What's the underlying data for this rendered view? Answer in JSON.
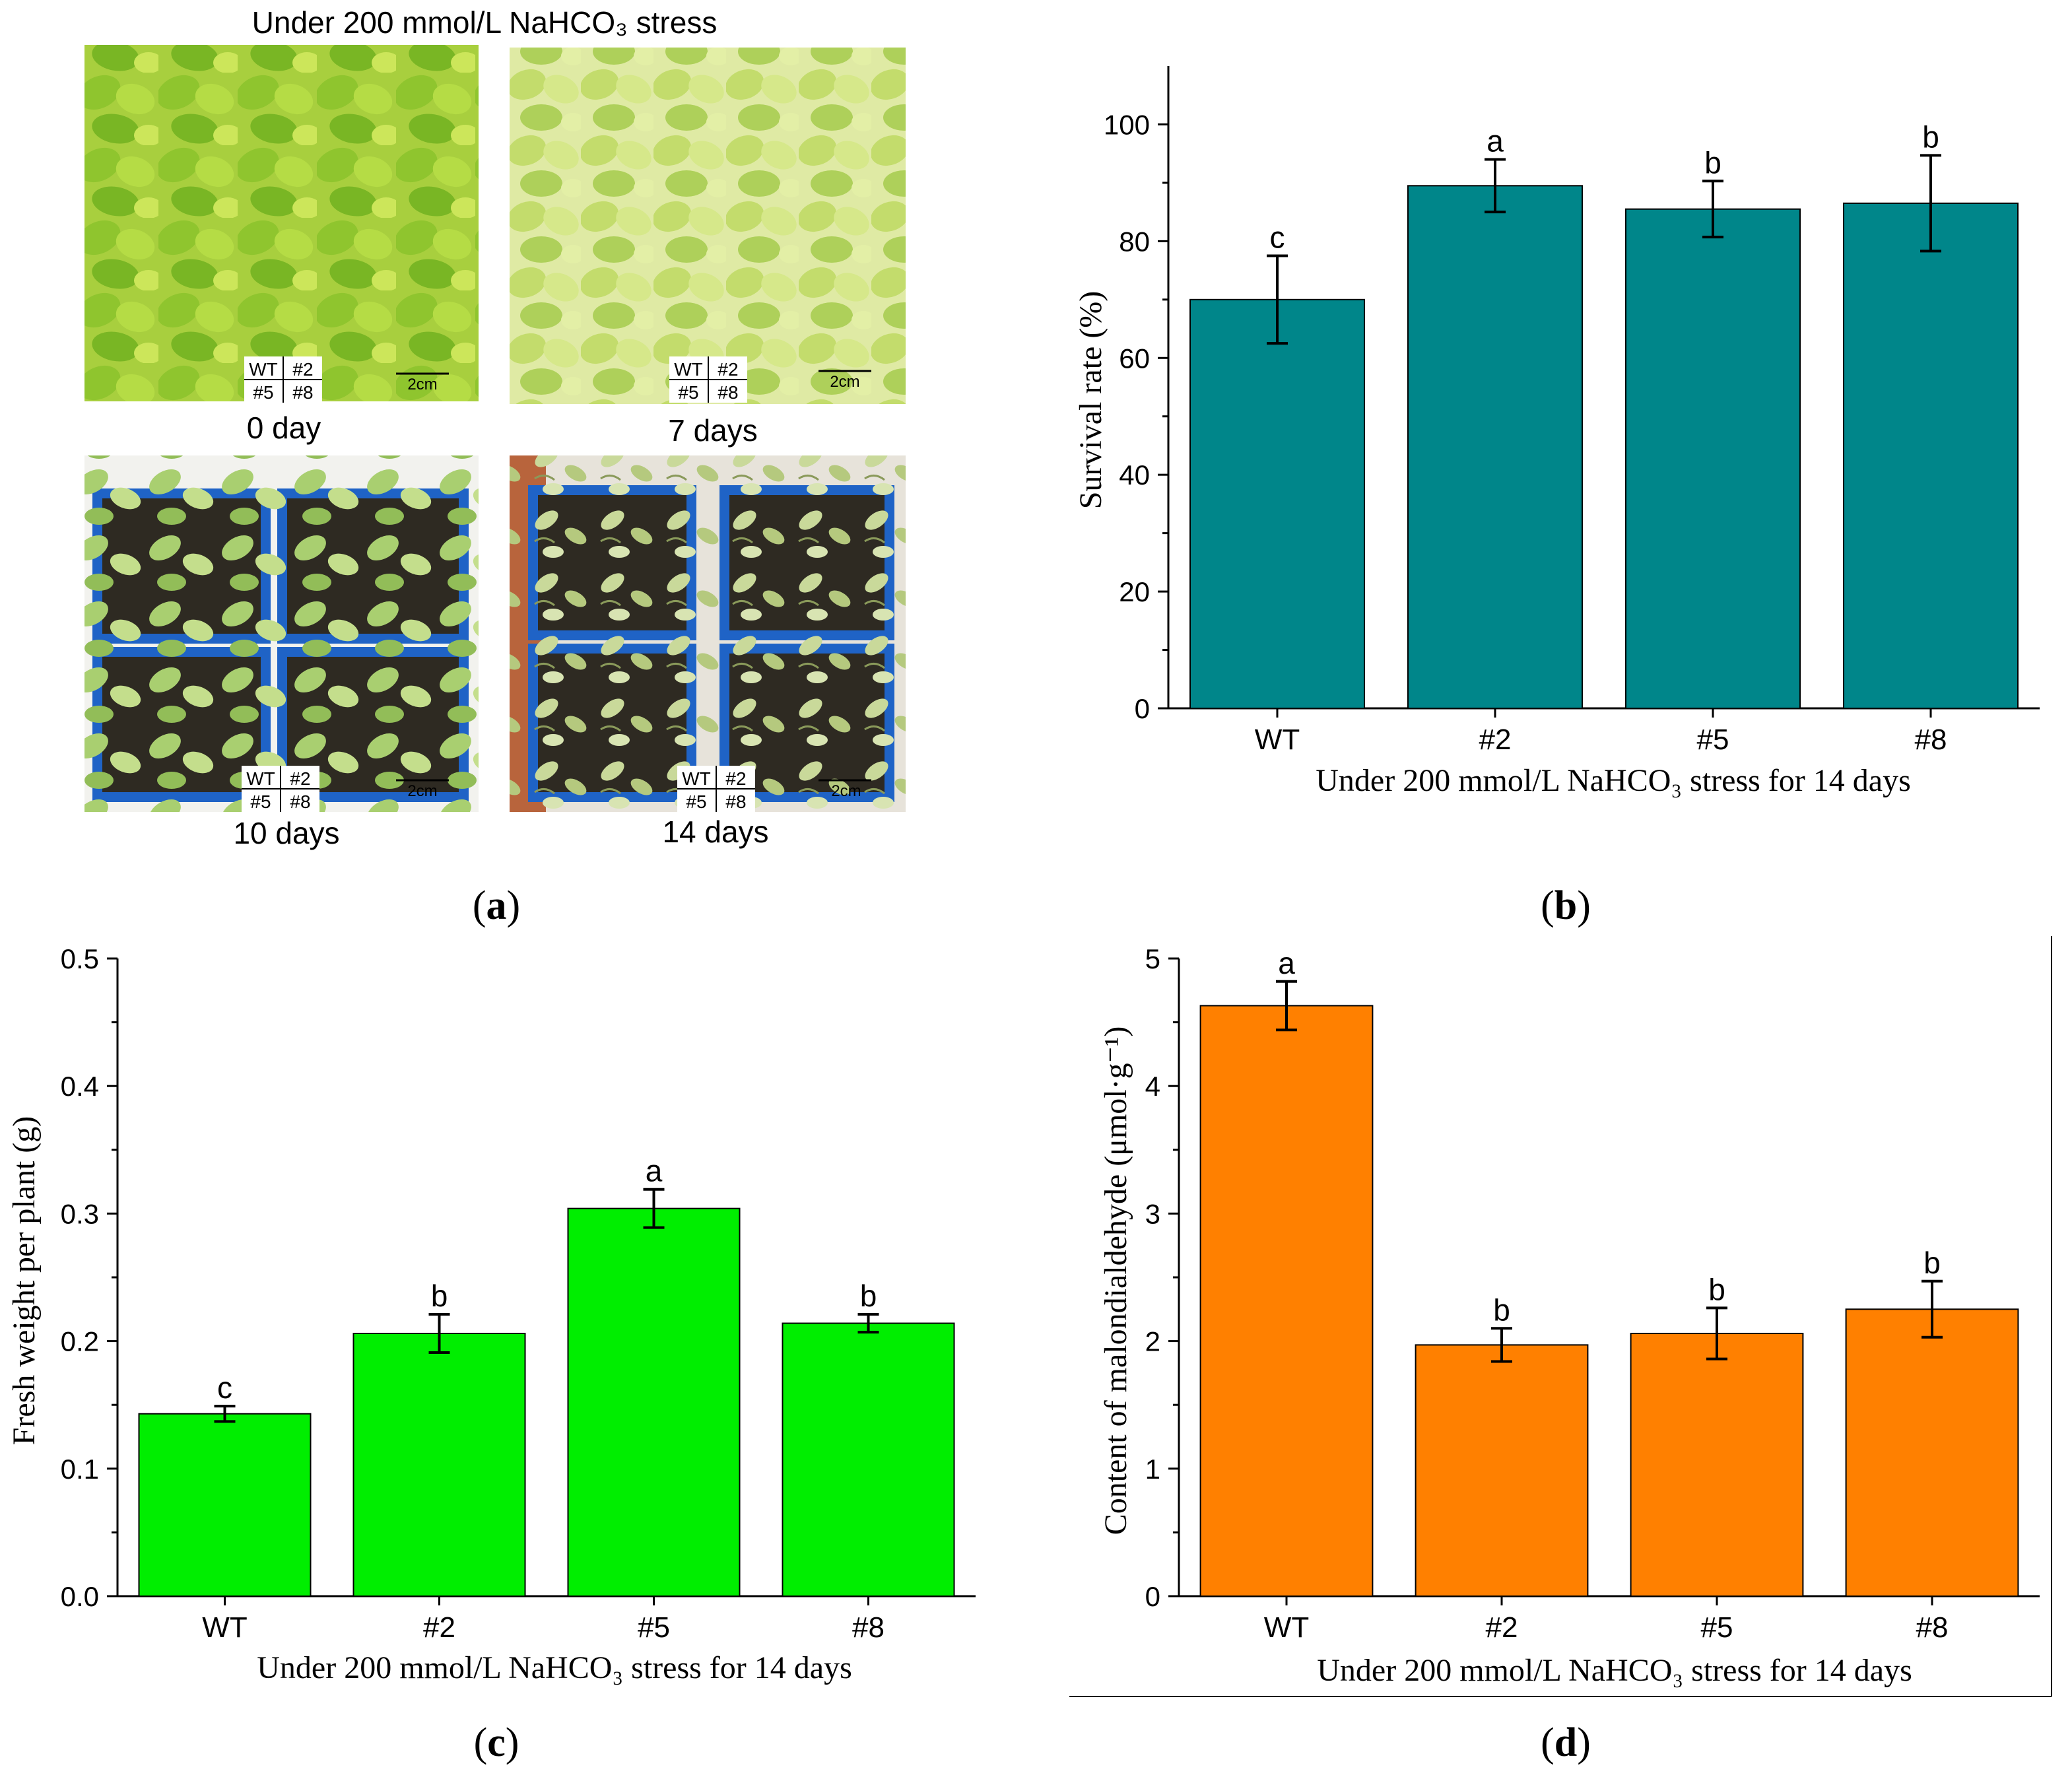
{
  "panel_a": {
    "title": "Under 200 mmol/L NaHCO₃  stress",
    "photos": [
      {
        "caption": "0 day",
        "health": "healthy",
        "scale": "2cm"
      },
      {
        "caption": "7 days",
        "health": "yellowing",
        "scale": "2cm"
      },
      {
        "caption": "10 days",
        "health": "sparse",
        "scale": "2cm"
      },
      {
        "caption": "14 days",
        "health": "wilted",
        "scale": "2cm"
      }
    ],
    "legend_grid": [
      "WT",
      "#2",
      "#5",
      "#8"
    ],
    "label": "a"
  },
  "colors": {
    "teal": "#00868a",
    "green": "#00ee00",
    "orange": "#ff8000",
    "leaf_light": "#c6e26a",
    "leaf_dark": "#7fae2c",
    "soil": "#2e2a22",
    "pot_blue": "#1f63c6"
  },
  "chart_data": [
    {
      "id": "b",
      "type": "bar",
      "label": "b",
      "categories": [
        "WT",
        "#2",
        "#5",
        "#8"
      ],
      "values": [
        70,
        89.5,
        85.5,
        86.5
      ],
      "errors": [
        7.5,
        4.5,
        4.8,
        8.2
      ],
      "letters": [
        "c",
        "a",
        "b",
        "b"
      ],
      "ylabel": "Survival rate (%)",
      "xlabel": "Under 200 mmol/L NaHCO₃ stress for 14 days",
      "ylim": [
        0,
        110
      ],
      "ticks": [
        "0",
        "20",
        "40",
        "60",
        "80",
        "100"
      ],
      "color": "teal"
    },
    {
      "id": "c",
      "type": "bar",
      "label": "c",
      "categories": [
        "WT",
        "#2",
        "#5",
        "#8"
      ],
      "values": [
        0.143,
        0.206,
        0.304,
        0.214
      ],
      "errors": [
        0.006,
        0.015,
        0.015,
        0.007
      ],
      "letters": [
        "c",
        "b",
        "a",
        "b"
      ],
      "ylabel": "Fresh weight per plant (g)",
      "xlabel": "Under 200 mmol/L NaHCO₃ stress for 14 days",
      "ylim": [
        0,
        0.5
      ],
      "ticks": [
        "0.0",
        "0.1",
        "0.2",
        "0.3",
        "0.4",
        "0.5"
      ],
      "color": "green"
    },
    {
      "id": "d",
      "type": "bar",
      "label": "d",
      "categories": [
        "WT",
        "#2",
        "#5",
        "#8"
      ],
      "values": [
        4.63,
        1.97,
        2.06,
        2.25
      ],
      "errors": [
        0.19,
        0.13,
        0.2,
        0.22
      ],
      "letters": [
        "a",
        "b",
        "b",
        "b"
      ],
      "ylabel": "Content of malondialdehyde (μmol·g⁻¹)",
      "xlabel": "Under 200 mmol/L NaHCO₃ stress for 14 days",
      "ylim": [
        0,
        5
      ],
      "ticks": [
        "0",
        "1",
        "2",
        "3",
        "4",
        "5"
      ],
      "color": "orange"
    }
  ]
}
